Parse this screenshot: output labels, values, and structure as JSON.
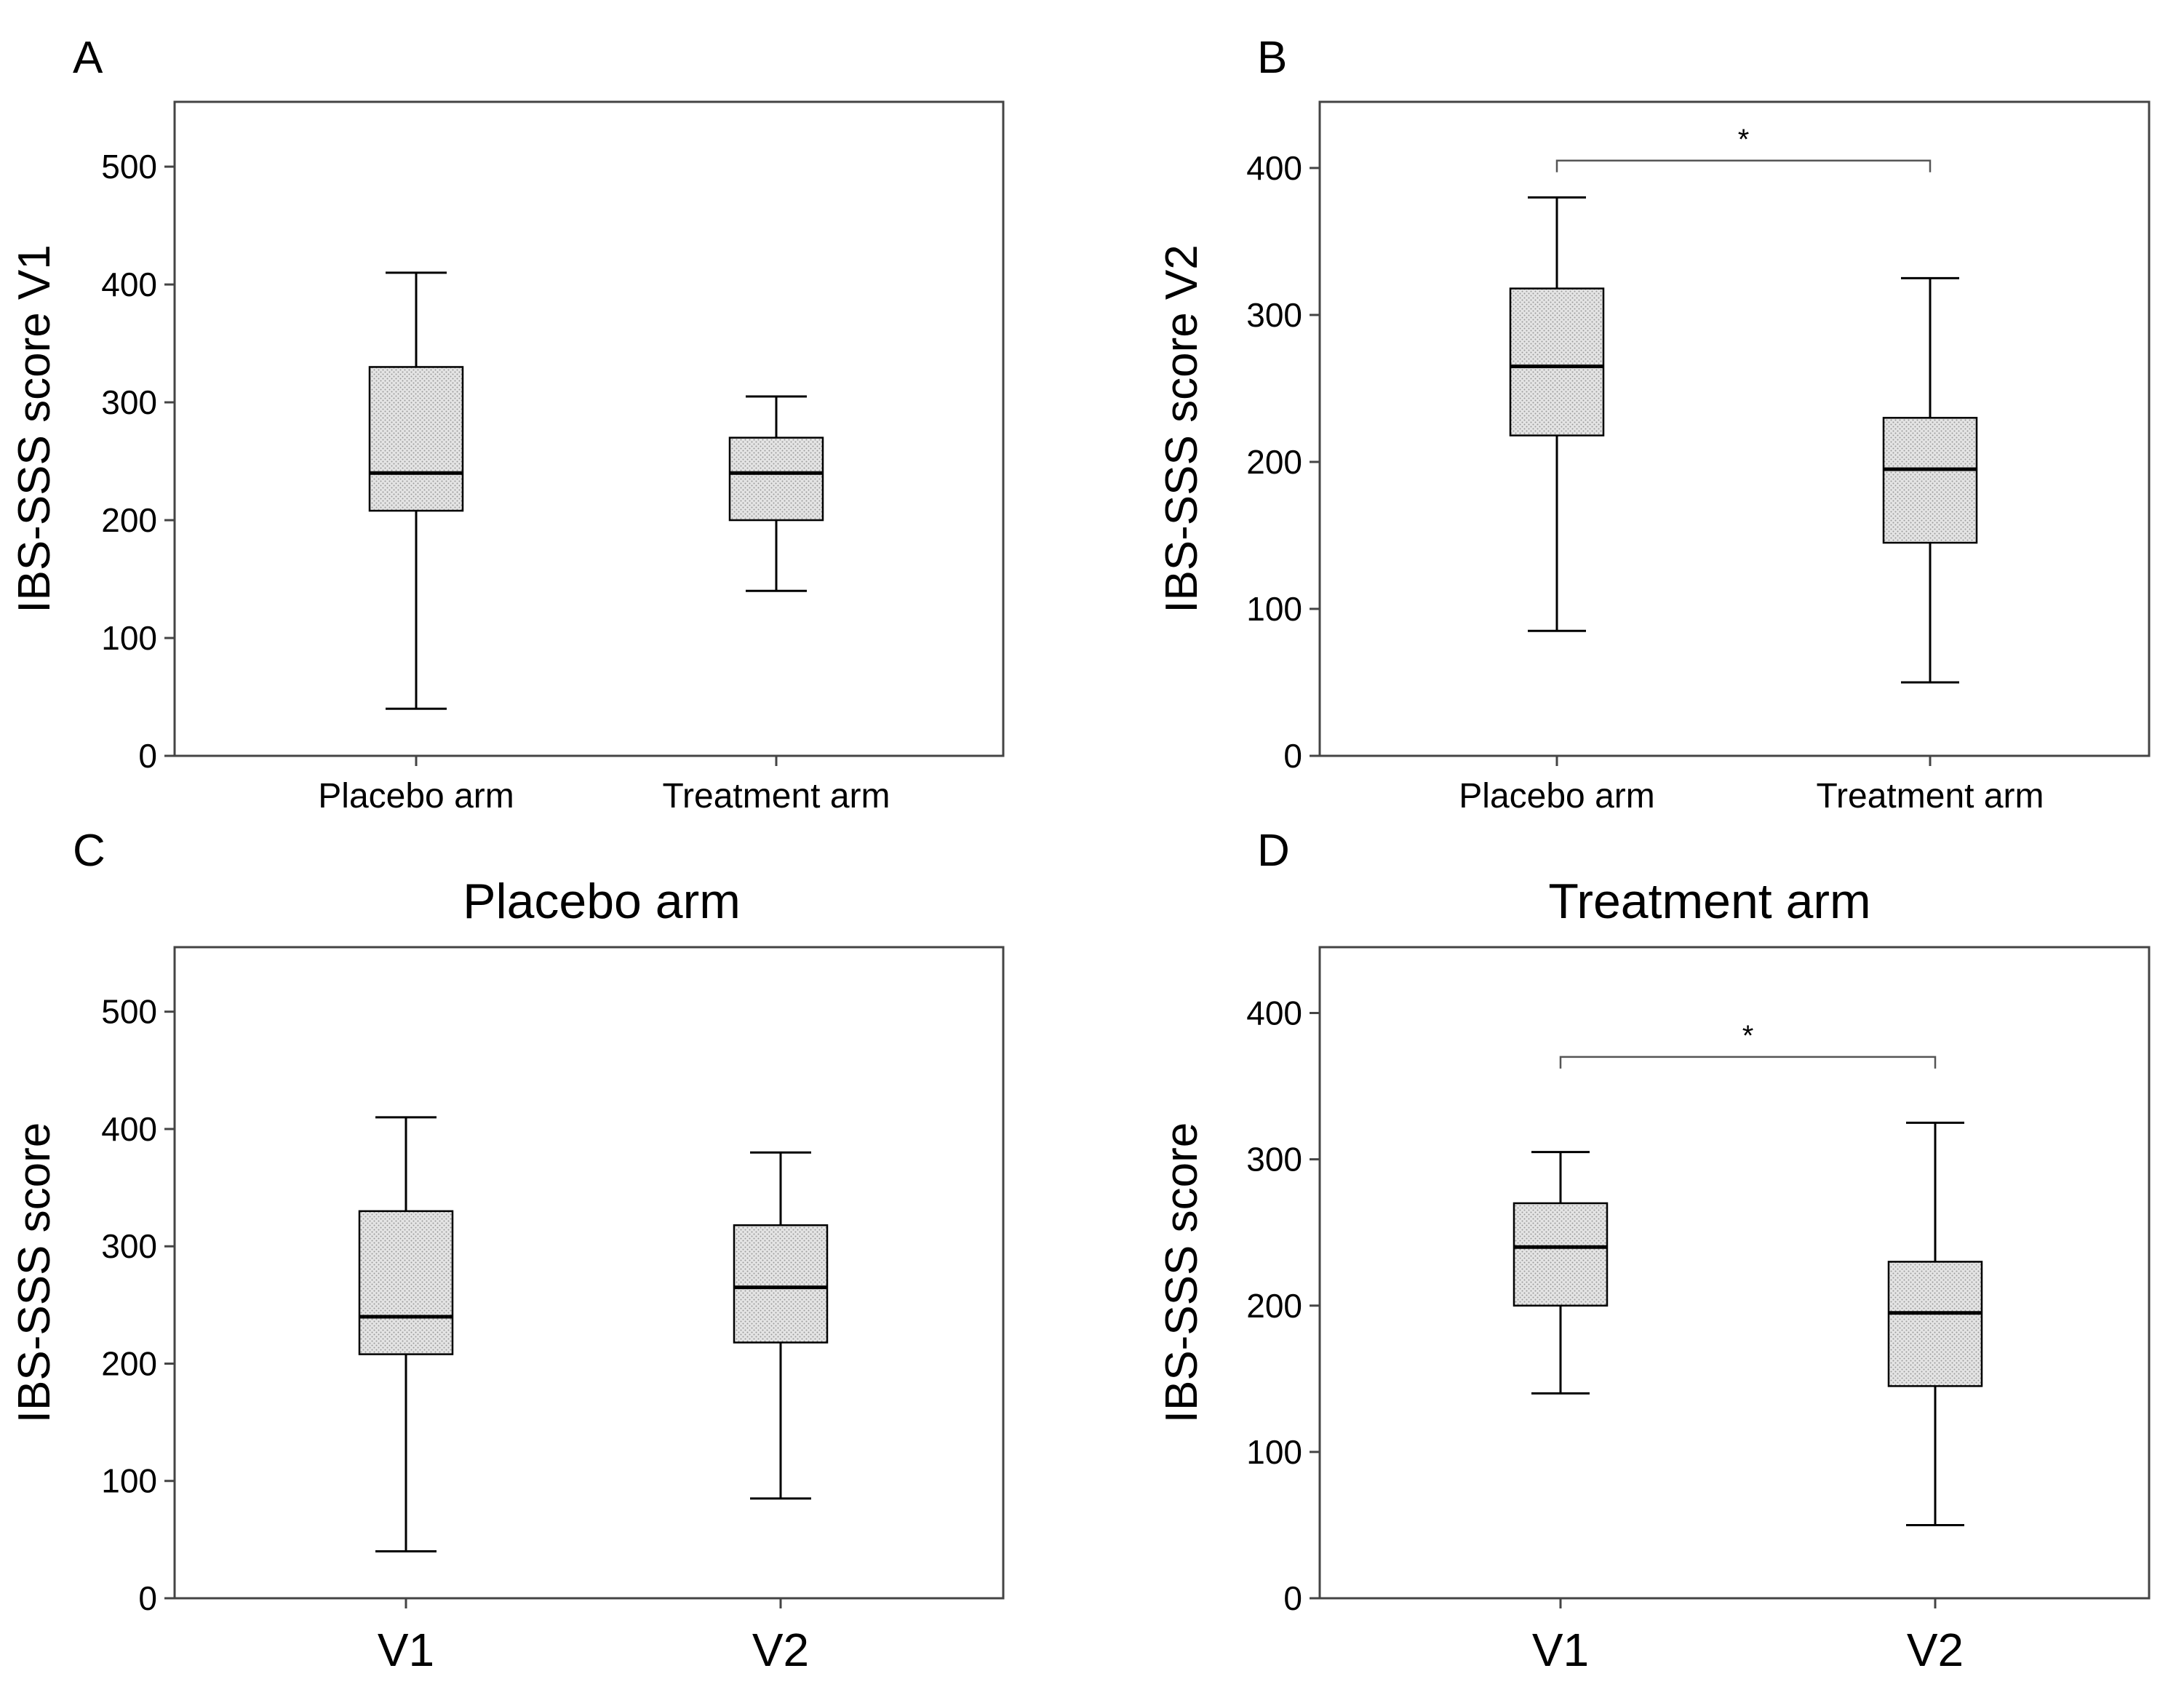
{
  "figure": {
    "colors": {
      "box_fill": "#d9d9d9",
      "stroke": "#000000",
      "frame": "#444444",
      "background": "#ffffff"
    }
  },
  "chart_data": [
    {
      "panel": "A",
      "type": "boxplot",
      "title": "",
      "xlabel": "",
      "ylabel": "IBS-SSS score V1",
      "ylim": [
        0,
        555
      ],
      "yticks": [
        0,
        100,
        200,
        300,
        400,
        500
      ],
      "categories": [
        "Placebo arm",
        "Treatment arm"
      ],
      "boxes": [
        {
          "min": 40,
          "q1": 208,
          "median": 240,
          "q3": 330,
          "max": 410
        },
        {
          "min": 140,
          "q1": 200,
          "median": 240,
          "q3": 270,
          "max": 305
        }
      ],
      "significance": null
    },
    {
      "panel": "B",
      "type": "boxplot",
      "title": "",
      "xlabel": "",
      "ylabel": "IBS-SSS score V2",
      "ylim": [
        0,
        445
      ],
      "yticks": [
        0,
        100,
        200,
        300,
        400
      ],
      "categories": [
        "Placebo arm",
        "Treatment arm"
      ],
      "boxes": [
        {
          "min": 85,
          "q1": 218,
          "median": 265,
          "q3": 318,
          "max": 380
        },
        {
          "min": 50,
          "q1": 145,
          "median": 195,
          "q3": 230,
          "max": 325
        }
      ],
      "significance": {
        "label": "*",
        "between": [
          0,
          1
        ],
        "y": 405
      }
    },
    {
      "panel": "C",
      "type": "boxplot",
      "title": "Placebo arm",
      "xlabel": "",
      "ylabel": "IBS-SSS score",
      "ylim": [
        0,
        555
      ],
      "yticks": [
        0,
        100,
        200,
        300,
        400,
        500
      ],
      "categories": [
        "V1",
        "V2"
      ],
      "boxes": [
        {
          "min": 40,
          "q1": 208,
          "median": 240,
          "q3": 330,
          "max": 410
        },
        {
          "min": 85,
          "q1": 218,
          "median": 265,
          "q3": 318,
          "max": 380
        }
      ],
      "significance": null
    },
    {
      "panel": "D",
      "type": "boxplot",
      "title": "Treatment arm",
      "xlabel": "",
      "ylabel": "IBS-SSS score",
      "ylim": [
        0,
        445
      ],
      "yticks": [
        0,
        100,
        200,
        300,
        400
      ],
      "categories": [
        "V1",
        "V2"
      ],
      "boxes": [
        {
          "min": 140,
          "q1": 200,
          "median": 240,
          "q3": 270,
          "max": 305
        },
        {
          "min": 50,
          "q1": 145,
          "median": 195,
          "q3": 230,
          "max": 325
        }
      ],
      "significance": {
        "label": "*",
        "between": [
          0,
          1
        ],
        "y": 370
      }
    }
  ]
}
